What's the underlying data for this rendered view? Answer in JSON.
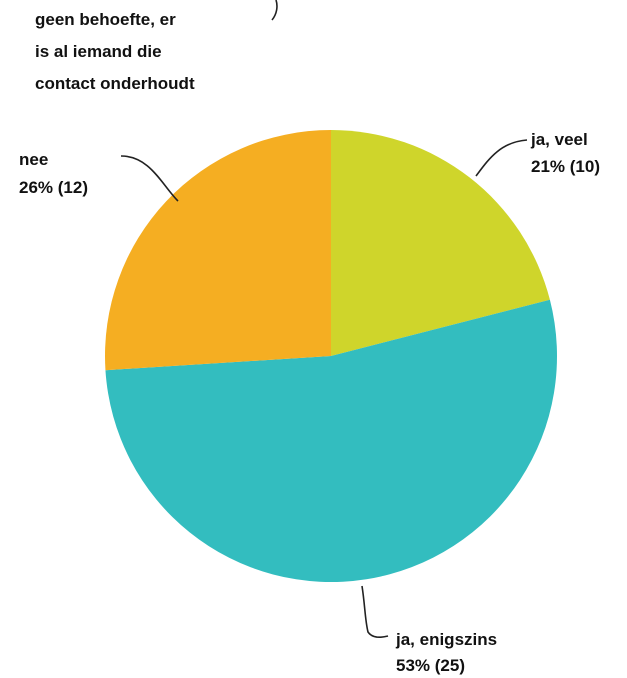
{
  "chart_data": {
    "type": "pie",
    "title": "",
    "start_angle_deg": 0,
    "direction": "clockwise",
    "slices": [
      {
        "label": "ja, veel",
        "value_label": "21% (10)",
        "percent": 21,
        "count": 10,
        "color": "#CFD52B"
      },
      {
        "label": "ja, enigszins",
        "value_label": "53% (25)",
        "percent": 53,
        "count": 25,
        "color": "#33BDBF"
      },
      {
        "label": "nee",
        "value_label": "26% (12)",
        "percent": 26,
        "count": 12,
        "color": "#F5AE22"
      },
      {
        "label": "geen behoefte, er is al iemand die contact onderhoudt",
        "label_lines": [
          "geen behoefte, er",
          "is al iemand die",
          "contact onderhoudt"
        ],
        "value_label": "",
        "percent": 0,
        "count": 0,
        "color": "#999999"
      }
    ]
  }
}
